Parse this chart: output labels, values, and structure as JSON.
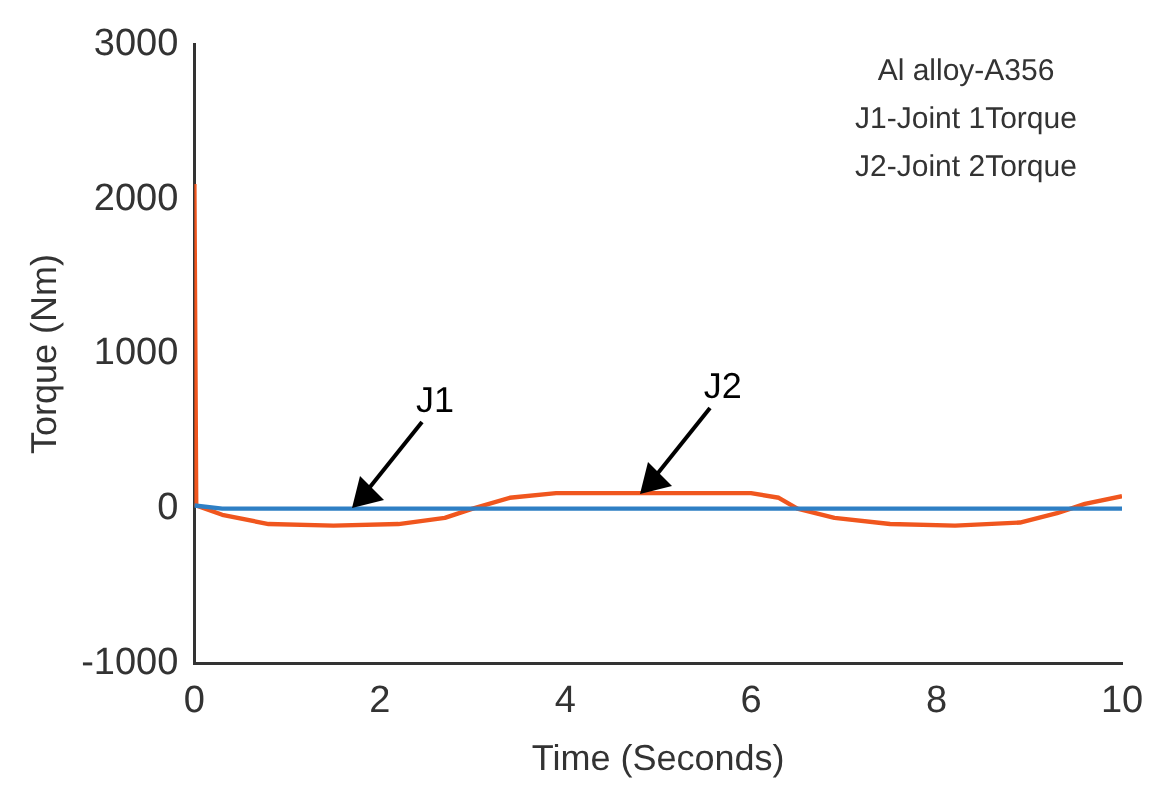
{
  "chart_data": {
    "type": "line",
    "xlabel": "Time (Seconds)",
    "ylabel": "Torque (Nm)",
    "xlim": [
      0,
      10
    ],
    "xticks": [
      0,
      2,
      4,
      6,
      8,
      10
    ],
    "ylim": [
      -1000,
      3000
    ],
    "yticks": [
      -1000,
      0,
      1000,
      2000,
      3000
    ],
    "grid": false,
    "legend": false,
    "marker": "none",
    "line_style": "solid",
    "annotations": [
      "Al alloy-A356",
      "J1-Joint 1Torque",
      "J2-Joint 2Torque"
    ],
    "series": [
      {
        "name": "J1",
        "color": "#2e7fc4",
        "x": [
          0,
          0.3,
          10
        ],
        "values": [
          20,
          0,
          0
        ]
      },
      {
        "name": "J2",
        "color": "#f0561e",
        "x": [
          0,
          0.02,
          0.3,
          0.8,
          1.5,
          2.2,
          2.7,
          3.0,
          3.4,
          3.9,
          5,
          6,
          6.3,
          6.5,
          6.9,
          7.5,
          8.2,
          8.9,
          9.3,
          9.6,
          10
        ],
        "values": [
          2100,
          20,
          -40,
          -100,
          -110,
          -100,
          -60,
          0,
          70,
          100,
          100,
          100,
          70,
          0,
          -60,
          -100,
          -110,
          -90,
          -30,
          30,
          80
        ]
      }
    ]
  }
}
